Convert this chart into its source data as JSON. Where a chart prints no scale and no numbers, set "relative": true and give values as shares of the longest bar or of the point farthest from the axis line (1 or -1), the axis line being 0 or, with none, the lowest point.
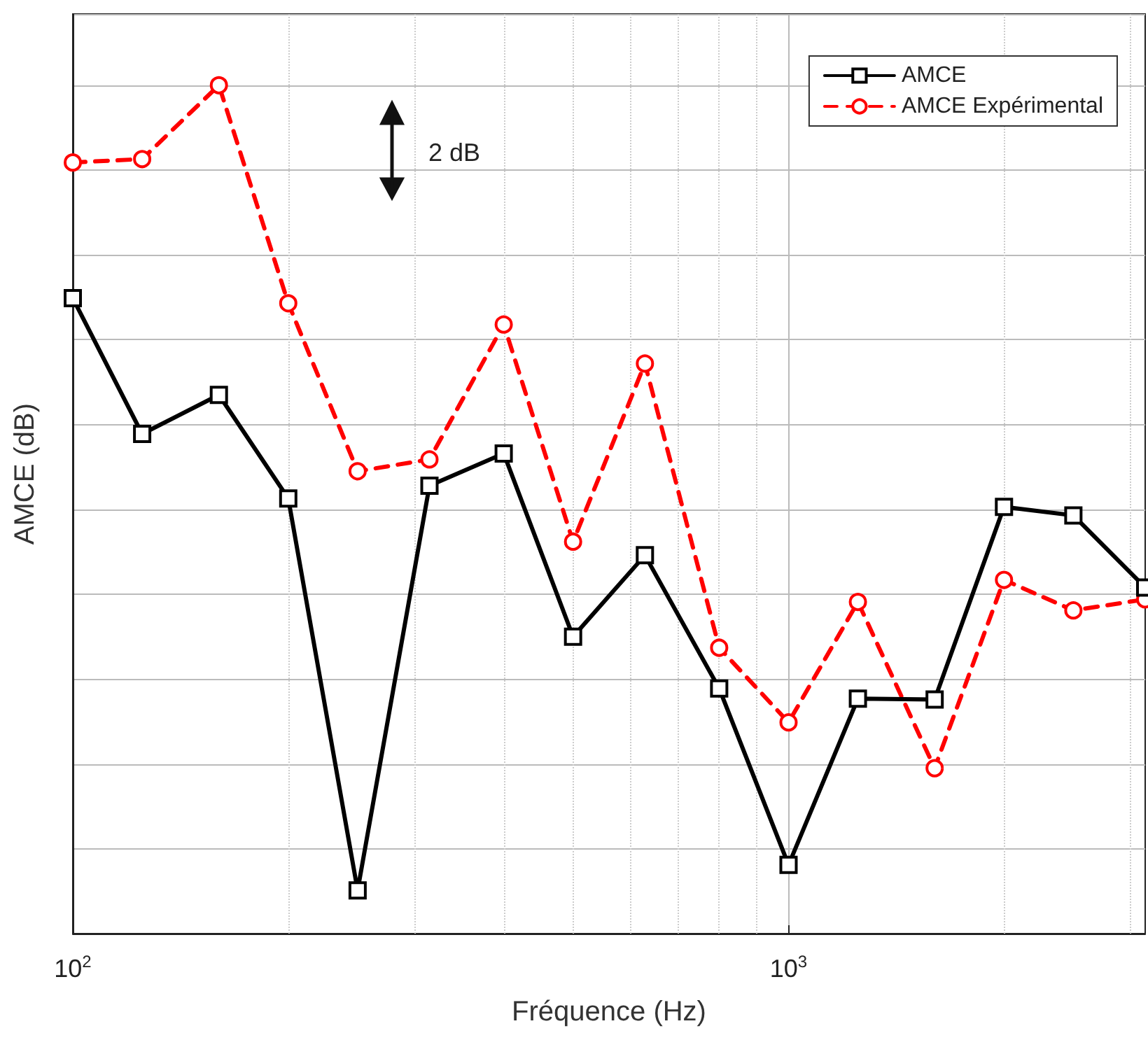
{
  "chart_data": {
    "type": "line",
    "xlabel": "Fréquence (Hz)",
    "ylabel": "AMCE (dB)",
    "relative": true,
    "log": "x",
    "grid": true,
    "legend": "top right",
    "tick_labels": "x",
    "x": [
      100,
      125,
      160,
      200,
      250,
      315,
      400,
      500,
      630,
      800,
      1000,
      1250,
      1600,
      2000,
      2500,
      3150
    ],
    "xlim": [
      100,
      3150
    ],
    "xticks": [
      {
        "value": 100,
        "label": "10$^{2}$"
      },
      {
        "value": 1000,
        "label": "10$^{3}$"
      }
    ],
    "annotations": [
      "2 dB"
    ],
    "series": [
      {
        "name": "AMCE",
        "color": "#000000",
        "marker": "square",
        "line_style": "solid",
        "values": [
          0.749,
          0.589,
          0.635,
          0.513,
          0.051,
          0.528,
          0.566,
          0.35,
          0.446,
          0.289,
          0.081,
          0.277,
          0.276,
          0.503,
          0.493,
          0.408
        ]
      },
      {
        "name": "AMCE Expérimental",
        "color": "#ff0000",
        "marker": "circle",
        "line_style": "dashed",
        "values": [
          0.909,
          0.913,
          1.0,
          0.743,
          0.545,
          0.559,
          0.718,
          0.462,
          0.672,
          0.337,
          0.249,
          0.391,
          0.195,
          0.417,
          0.381,
          0.394
        ]
      }
    ]
  }
}
